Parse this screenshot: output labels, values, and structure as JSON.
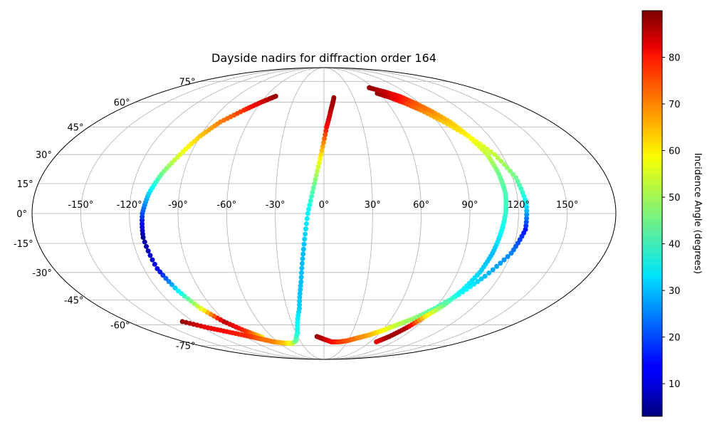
{
  "chart_data": {
    "type": "scatter",
    "projection": "mollweide",
    "title": "Dayside nadirs for diffraction order 164",
    "xlabel": "",
    "ylabel": "",
    "grid": true,
    "lon_ticks": [
      -150,
      -120,
      -90,
      -60,
      -30,
      0,
      30,
      60,
      90,
      120,
      150
    ],
    "lon_tick_labels": [
      "-150°",
      "-120°",
      "-90°",
      "-60°",
      "-30°",
      "0°",
      "30°",
      "60°",
      "90°",
      "120°",
      "150°"
    ],
    "lat_ticks": [
      -75,
      -60,
      -45,
      -30,
      -15,
      0,
      15,
      30,
      45,
      60,
      75
    ],
    "lat_tick_labels": [
      "-75°",
      "-60°",
      "-45°",
      "-30°",
      "-15°",
      "0°",
      "15°",
      "30°",
      "45°",
      "60°",
      "75°"
    ],
    "colorbar": {
      "label": "Incidence Angle (degrees)",
      "colormap": "jet",
      "range": [
        3,
        90
      ],
      "ticks": [
        10,
        20,
        30,
        40,
        50,
        60,
        70,
        80
      ],
      "tick_labels": [
        "10",
        "20",
        "30",
        "40",
        "50",
        "60",
        "70",
        "80"
      ]
    },
    "series": [
      {
        "lon": [
          -72,
          -82,
          -92,
          -100,
          -106,
          -111,
          -113,
          -112,
          -109,
          -104,
          -97,
          -90,
          -82,
          -70,
          -60,
          -50
        ],
        "lat": [
          -68.5,
          -64,
          -58,
          -50,
          -40,
          -28,
          -12,
          0,
          10,
          20,
          30,
          40,
          48,
          55,
          60,
          64
        ],
        "incidence": [
          60,
          75,
          85,
          55,
          35,
          12,
          5,
          20,
          32,
          45,
          55,
          62,
          68,
          75,
          82,
          88
        ]
      },
      {
        "lon": [
          -130,
          -115,
          -100,
          -85,
          -75,
          -65,
          -52,
          -42,
          -35,
          -28,
          -20,
          -16,
          -13,
          -10,
          -6,
          -2,
          2,
          6,
          10
        ],
        "lat": [
          -58,
          -62,
          -65,
          -68,
          -70,
          -72,
          -73,
          -73,
          -71,
          -65,
          -50,
          -35,
          -18,
          0,
          15,
          30,
          45,
          55,
          63
        ],
        "incidence": [
          88,
          80,
          78,
          75,
          70,
          68,
          62,
          55,
          45,
          38,
          32,
          30,
          30,
          35,
          45,
          60,
          78,
          85,
          88
        ]
      },
      {
        "lon": [
          -8,
          0,
          10,
          20,
          30,
          40,
          50,
          60,
          70,
          80,
          90,
          100,
          110,
          120,
          125,
          125,
          122,
          115,
          105,
          95,
          85,
          75,
          68,
          58
        ],
        "lat": [
          -68,
          -70,
          -72,
          -72,
          -71,
          -69,
          -67,
          -64,
          -60,
          -56,
          -50,
          -42,
          -32,
          -20,
          -8,
          5,
          18,
          30,
          40,
          48,
          55,
          60,
          63,
          66
        ],
        "incidence": [
          88,
          85,
          80,
          75,
          72,
          68,
          65,
          58,
          52,
          48,
          42,
          38,
          30,
          25,
          15,
          35,
          45,
          52,
          58,
          62,
          68,
          75,
          82,
          88
        ]
      },
      {
        "lon": [
          68,
          75,
          82,
          88,
          95,
          100,
          105,
          108,
          110,
          112,
          113,
          112,
          110,
          105,
          100,
          92,
          85,
          78,
          68,
          55
        ],
        "lat": [
          -72,
          -68,
          -62,
          -55,
          -48,
          -40,
          -30,
          -20,
          -10,
          0,
          10,
          20,
          30,
          40,
          48,
          55,
          60,
          64,
          67,
          70
        ],
        "incidence": [
          80,
          88,
          85,
          60,
          45,
          35,
          32,
          30,
          35,
          40,
          42,
          45,
          52,
          58,
          62,
          68,
          72,
          78,
          84,
          88
        ]
      }
    ]
  }
}
